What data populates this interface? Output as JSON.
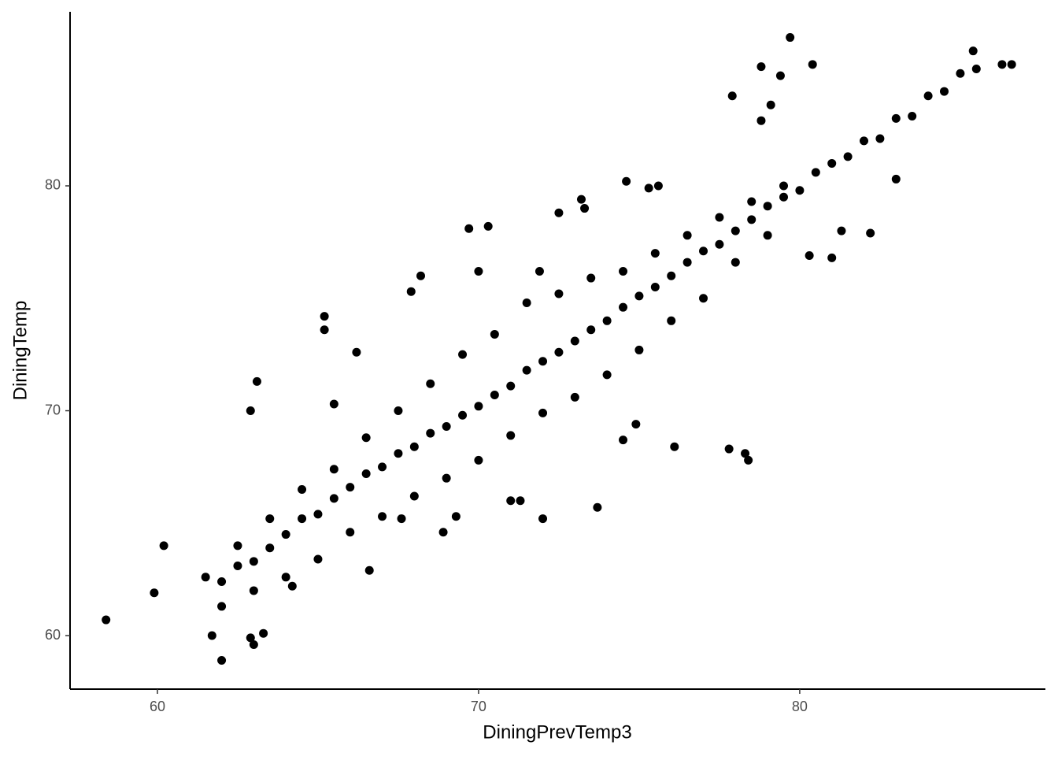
{
  "chart_data": {
    "type": "scatter",
    "x_label": "DiningPrevTemp3",
    "y_label": "DiningTemp",
    "color": "#000000",
    "x": [
      61.5,
      62,
      62.5,
      63,
      63.5,
      64,
      64.5,
      65,
      65.5,
      66,
      66.5,
      67,
      67.5,
      68,
      68.5,
      69,
      69.5,
      70,
      70.5,
      71,
      71.5,
      72,
      72.5,
      73,
      73.5,
      74,
      74.5,
      75,
      75.5,
      76,
      76.5,
      77,
      77.5,
      78,
      78.5,
      79,
      79.5,
      80,
      80.5,
      81,
      81.5,
      82,
      82.5,
      83,
      83.5,
      84,
      84.5,
      85,
      85.5,
      62,
      63,
      64,
      65,
      66,
      67,
      68,
      69,
      70,
      71,
      72,
      73,
      74,
      75,
      76,
      77,
      78,
      79,
      62.5,
      63.5,
      64.5,
      65.5,
      66.5,
      67.5,
      68.5,
      69.5,
      70.5,
      71.5,
      72.5,
      73.5,
      74.5,
      75.5,
      76.5,
      77.5,
      78.5,
      79.5,
      58.4,
      62.0,
      63.0,
      60.2,
      59.9,
      63.1,
      62.9,
      69.7,
      70.3,
      77.8,
      78.3,
      78.4,
      76.1,
      79.7,
      78.8,
      77.9,
      80.4,
      79.4,
      78.8,
      79.1,
      74.6,
      75.3,
      75.6,
      73.2,
      80.3,
      81.0,
      81.3,
      82.2,
      86.3,
      86.6,
      85.4,
      83.0,
      74.9,
      74.5,
      73.7,
      72.0,
      71.3,
      71.0,
      69.3,
      68.9,
      67.6,
      66.6,
      64.2,
      61.7,
      62.9,
      63.3,
      65.2,
      65.2,
      65.5,
      66.2,
      67.9,
      68.2,
      70.0,
      71.9,
      72.5,
      73.3
    ],
    "values": [
      62.6,
      62.4,
      63.1,
      63.3,
      63.9,
      64.5,
      65.2,
      65.4,
      66.1,
      66.6,
      67.2,
      67.5,
      68.1,
      68.4,
      69.0,
      69.3,
      69.8,
      70.2,
      70.7,
      71.1,
      71.8,
      72.2,
      72.6,
      73.1,
      73.6,
      74.0,
      74.6,
      75.1,
      75.5,
      76.0,
      76.6,
      77.1,
      77.4,
      78.0,
      78.5,
      79.1,
      79.5,
      79.8,
      80.6,
      81.0,
      81.3,
      82.0,
      82.1,
      83.0,
      83.1,
      84.0,
      84.2,
      85.0,
      85.2,
      61.3,
      62.0,
      62.6,
      63.4,
      64.6,
      65.3,
      66.2,
      67.0,
      67.8,
      68.9,
      69.9,
      70.6,
      71.6,
      72.7,
      74.0,
      75.0,
      76.6,
      77.8,
      64.0,
      65.2,
      66.5,
      67.4,
      68.8,
      70.0,
      71.2,
      72.5,
      73.4,
      74.8,
      75.2,
      75.9,
      76.2,
      77.0,
      77.8,
      78.6,
      79.3,
      80.0,
      60.7,
      58.9,
      59.6,
      64.0,
      61.9,
      71.3,
      70.0,
      78.1,
      78.2,
      68.3,
      68.1,
      67.8,
      68.4,
      86.6,
      85.3,
      84.0,
      85.4,
      84.9,
      82.9,
      83.6,
      80.2,
      79.9,
      80.0,
      79.4,
      76.9,
      76.8,
      78.0,
      77.9,
      85.4,
      85.4,
      86.0,
      80.3,
      69.4,
      68.7,
      65.7,
      65.2,
      66.0,
      66.0,
      65.3,
      64.6,
      65.2,
      62.9,
      62.2,
      60.0,
      59.9,
      60.1,
      73.6,
      74.2,
      70.3,
      72.6,
      75.3,
      76.0,
      76.2,
      76.2,
      78.8,
      79.0
    ],
    "xlim": [
      57.28,
      87.65
    ],
    "ylim": [
      57.62,
      87.74
    ],
    "xticks": [
      60,
      70,
      80
    ],
    "yticks": [
      60,
      70,
      80
    ],
    "grid": false
  }
}
